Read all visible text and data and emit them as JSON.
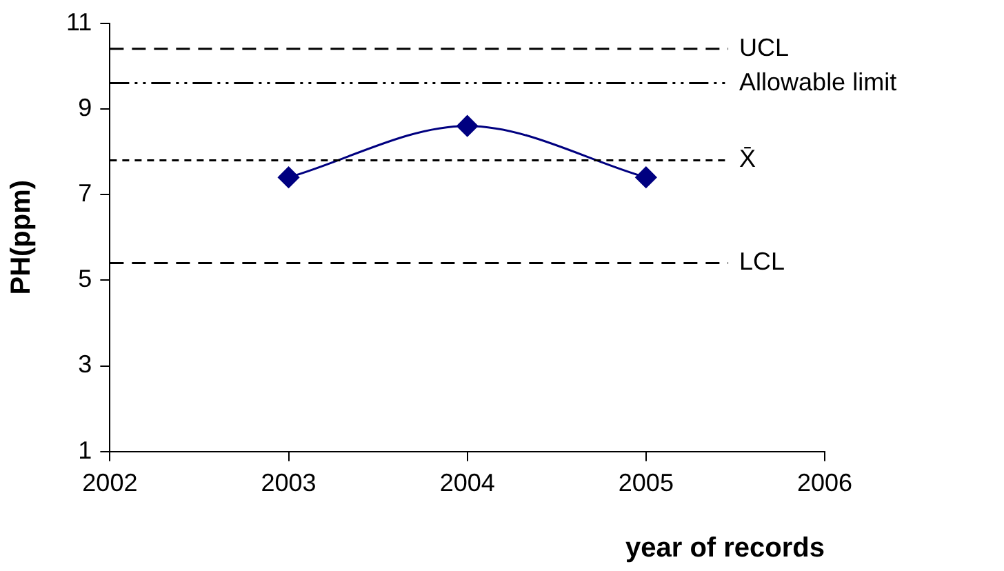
{
  "chart_data": {
    "type": "line",
    "xlabel": "year of records",
    "ylabel": "PH(ppm)",
    "x": [
      2003,
      2004,
      2005
    ],
    "series": [
      {
        "color": "#000080",
        "values": [
          7.4,
          8.6,
          7.4
        ]
      }
    ],
    "marker": "diamond",
    "xlim": [
      2002,
      2006
    ],
    "xticks": [
      2002,
      2003,
      2004,
      2005,
      2006
    ],
    "ylim": [
      1,
      11
    ],
    "yticks": [
      1,
      3,
      5,
      7,
      9,
      11
    ],
    "grid": false,
    "legend": false,
    "ref_lines": [
      {
        "axis": "y",
        "value": 10.4,
        "label": "UCL",
        "color": "#000000",
        "line_style": "dashed"
      },
      {
        "axis": "y",
        "value": 9.6,
        "label": "Allowable limit",
        "color": "#000000",
        "line_style": "dashdotdot"
      },
      {
        "axis": "y",
        "value": 7.8,
        "label": "X̄",
        "color": "#000000",
        "line_style": "dotted"
      },
      {
        "axis": "y",
        "value": 5.4,
        "label": "LCL",
        "color": "#000000",
        "line_style": "dashed"
      }
    ]
  }
}
